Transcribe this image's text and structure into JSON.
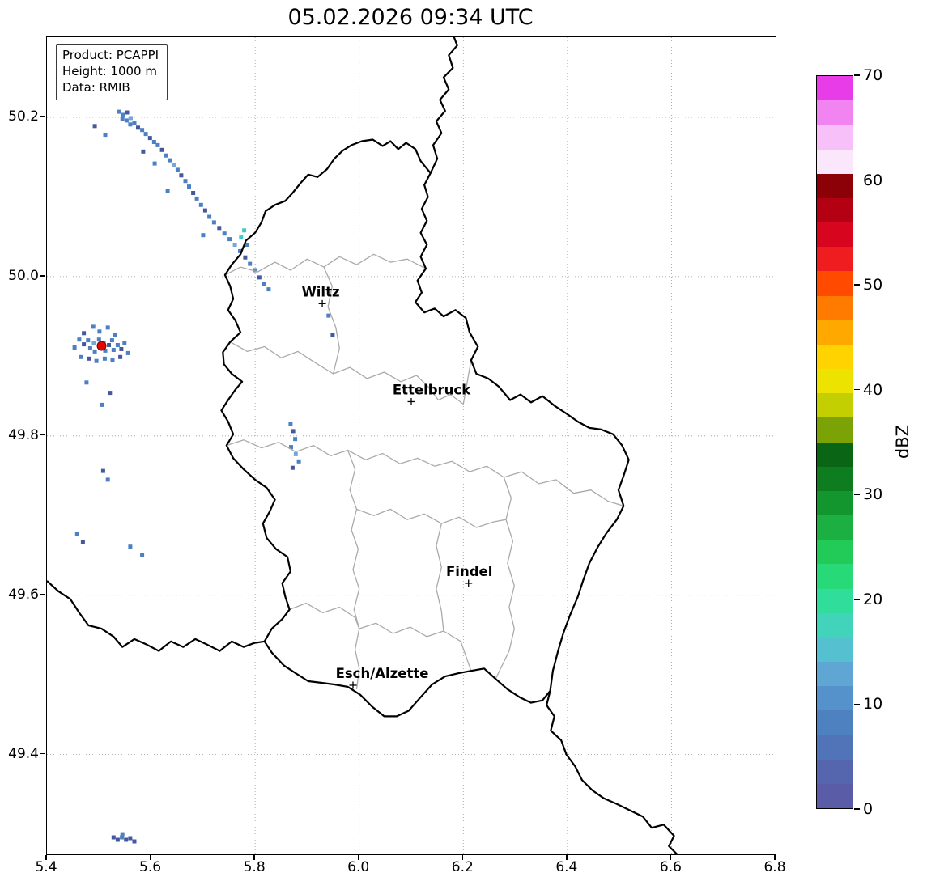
{
  "title": "05.02.2026 09:34 UTC",
  "info_box": {
    "lines": [
      "Product: PCAPPI",
      "Height: 1000 m",
      "Data: RMIB"
    ]
  },
  "axes": {
    "x_ticks": [
      "5.4",
      "5.6",
      "5.8",
      "6.0",
      "6.2",
      "6.4",
      "6.6",
      "6.8"
    ],
    "y_ticks": [
      "50.2",
      "50.0",
      "49.8",
      "49.6",
      "49.4"
    ],
    "x_range": [
      5.4,
      6.8
    ],
    "y_range": [
      49.2747,
      50.3005
    ]
  },
  "colorbar": {
    "label": "dBZ",
    "tick_labels": [
      "0",
      "10",
      "20",
      "30",
      "40",
      "50",
      "60",
      "70"
    ],
    "value_range": [
      0,
      70
    ],
    "bands_bottom_to_top": [
      "#5b5ca8",
      "#5566ae",
      "#5173b7",
      "#4e81c0",
      "#5591cb",
      "#60a6d5",
      "#55c0cf",
      "#42d4bb",
      "#30dd9a",
      "#27da77",
      "#22cb58",
      "#1bb041",
      "#14962e",
      "#0d7d20",
      "#0a6615",
      "#7ca305",
      "#c3cf00",
      "#ece300",
      "#ffd300",
      "#ffa900",
      "#ff7b00",
      "#ff4a00",
      "#ef1c20",
      "#d7051e",
      "#b30012",
      "#8c0008",
      "#fbe7fb",
      "#f8c0f8",
      "#f184f1",
      "#e93ce9"
    ]
  },
  "cities": [
    {
      "name": "Wiltz",
      "lon": 5.929,
      "lat": 49.966,
      "label_dx": -2
    },
    {
      "name": "Ettelbruck",
      "lon": 6.1,
      "lat": 49.843,
      "label_dx": 25
    },
    {
      "name": "Findel",
      "lon": 6.21,
      "lat": 49.615,
      "label_dx": 1
    },
    {
      "name": "Esch/Alzette",
      "lon": 5.988,
      "lat": 49.487,
      "label_dx": 36
    }
  ],
  "radar": {
    "site_marker": {
      "lon": 5.505,
      "lat": 49.913,
      "color": "#e10600"
    },
    "cell_colors": [
      "#4d7fc3",
      "#45589e",
      "#74a7d8",
      "#43c8c8",
      "#2fbf62",
      "#5566ae"
    ],
    "cells": [
      [
        5.538,
        50.207,
        0
      ],
      [
        5.546,
        50.203,
        0
      ],
      [
        5.554,
        50.206,
        1
      ],
      [
        5.545,
        50.198,
        0
      ],
      [
        5.553,
        50.196,
        0
      ],
      [
        5.561,
        50.199,
        2
      ],
      [
        5.56,
        50.191,
        0
      ],
      [
        5.568,
        50.193,
        0
      ],
      [
        5.575,
        50.187,
        1
      ],
      [
        5.583,
        50.184,
        0
      ],
      [
        5.59,
        50.179,
        0
      ],
      [
        5.598,
        50.174,
        1
      ],
      [
        5.606,
        50.169,
        0
      ],
      [
        5.613,
        50.165,
        0
      ],
      [
        5.621,
        50.159,
        1
      ],
      [
        5.629,
        50.152,
        0
      ],
      [
        5.636,
        50.146,
        0
      ],
      [
        5.644,
        50.14,
        2
      ],
      [
        5.651,
        50.134,
        0
      ],
      [
        5.658,
        50.127,
        1
      ],
      [
        5.666,
        50.12,
        0
      ],
      [
        5.673,
        50.113,
        0
      ],
      [
        5.681,
        50.105,
        1
      ],
      [
        5.688,
        50.098,
        0
      ],
      [
        5.696,
        50.09,
        0
      ],
      [
        5.704,
        50.083,
        1
      ],
      [
        5.712,
        50.075,
        0
      ],
      [
        5.721,
        50.068,
        0
      ],
      [
        5.731,
        50.061,
        1
      ],
      [
        5.741,
        50.054,
        0
      ],
      [
        5.751,
        50.047,
        0
      ],
      [
        5.761,
        50.04,
        2
      ],
      [
        5.771,
        50.032,
        0
      ],
      [
        5.781,
        50.024,
        1
      ],
      [
        5.79,
        50.016,
        0
      ],
      [
        5.799,
        50.008,
        0
      ],
      [
        5.808,
        49.999,
        1
      ],
      [
        5.817,
        49.991,
        0
      ],
      [
        5.826,
        49.984,
        0
      ],
      [
        5.492,
        50.189,
        1
      ],
      [
        5.512,
        50.178,
        0
      ],
      [
        5.585,
        50.157,
        1
      ],
      [
        5.607,
        50.142,
        0
      ],
      [
        5.632,
        50.108,
        0
      ],
      [
        5.7,
        50.052,
        0
      ],
      [
        5.779,
        50.058,
        3
      ],
      [
        5.773,
        50.049,
        3
      ],
      [
        5.785,
        50.04,
        0
      ],
      [
        5.462,
        49.921,
        0
      ],
      [
        5.471,
        49.915,
        1
      ],
      [
        5.479,
        49.92,
        0
      ],
      [
        5.483,
        49.91,
        0
      ],
      [
        5.49,
        49.917,
        2
      ],
      [
        5.492,
        49.906,
        0
      ],
      [
        5.5,
        49.921,
        0
      ],
      [
        5.502,
        49.912,
        4
      ],
      [
        5.509,
        49.917,
        0
      ],
      [
        5.512,
        49.907,
        0
      ],
      [
        5.519,
        49.914,
        1
      ],
      [
        5.525,
        49.92,
        0
      ],
      [
        5.528,
        49.908,
        0
      ],
      [
        5.536,
        49.914,
        0
      ],
      [
        5.543,
        49.909,
        1
      ],
      [
        5.549,
        49.917,
        0
      ],
      [
        5.466,
        49.899,
        0
      ],
      [
        5.481,
        49.897,
        1
      ],
      [
        5.495,
        49.894,
        0
      ],
      [
        5.511,
        49.897,
        0
      ],
      [
        5.526,
        49.895,
        0
      ],
      [
        5.541,
        49.899,
        1
      ],
      [
        5.453,
        49.911,
        0
      ],
      [
        5.556,
        49.904,
        0
      ],
      [
        5.471,
        49.929,
        1
      ],
      [
        5.501,
        49.931,
        0
      ],
      [
        5.531,
        49.927,
        0
      ],
      [
        5.489,
        49.937,
        0
      ],
      [
        5.517,
        49.936,
        0
      ],
      [
        5.476,
        49.867,
        0
      ],
      [
        5.521,
        49.854,
        1
      ],
      [
        5.506,
        49.839,
        0
      ],
      [
        5.508,
        49.756,
        1
      ],
      [
        5.517,
        49.745,
        0
      ],
      [
        5.868,
        49.815,
        0
      ],
      [
        5.873,
        49.806,
        1
      ],
      [
        5.877,
        49.796,
        0
      ],
      [
        5.869,
        49.786,
        0
      ],
      [
        5.878,
        49.777,
        2
      ],
      [
        5.884,
        49.768,
        0
      ],
      [
        5.872,
        49.76,
        1
      ],
      [
        5.941,
        49.951,
        0
      ],
      [
        5.949,
        49.927,
        1
      ],
      [
        5.458,
        49.677,
        0
      ],
      [
        5.469,
        49.667,
        1
      ],
      [
        5.56,
        49.661,
        0
      ],
      [
        5.583,
        49.651,
        0
      ],
      [
        5.528,
        49.296,
        1
      ],
      [
        5.536,
        49.293,
        1
      ],
      [
        5.544,
        49.296,
        0
      ],
      [
        5.552,
        49.293,
        1
      ],
      [
        5.56,
        49.295,
        1
      ],
      [
        5.568,
        49.291,
        1
      ],
      [
        5.545,
        49.3,
        0
      ]
    ]
  }
}
